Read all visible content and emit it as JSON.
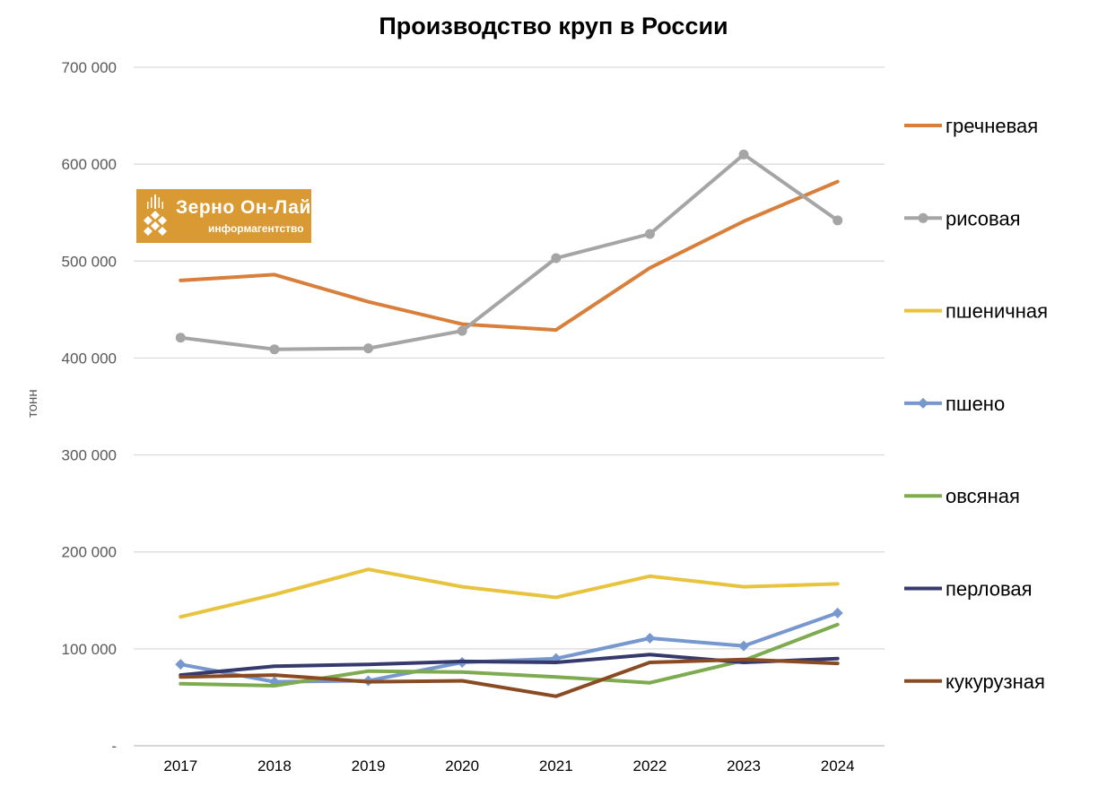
{
  "chart_data": {
    "type": "line",
    "title": "Производство круп в России",
    "ylabel": "тонн",
    "xlabel": "",
    "categories": [
      "2017",
      "2018",
      "2019",
      "2020",
      "2021",
      "2022",
      "2023",
      "2024"
    ],
    "ylim": [
      0,
      700000
    ],
    "yticks": [
      {
        "value": 0,
        "label": "-"
      },
      {
        "value": 100000,
        "label": "100 000"
      },
      {
        "value": 200000,
        "label": "200 000"
      },
      {
        "value": 300000,
        "label": "300 000"
      },
      {
        "value": 400000,
        "label": "400 000"
      },
      {
        "value": 500000,
        "label": "500 000"
      },
      {
        "value": 600000,
        "label": "600 000"
      },
      {
        "value": 700000,
        "label": "700 000"
      }
    ],
    "grid": true,
    "legend_position": "right",
    "series": [
      {
        "name": "гречневая",
        "color": "#d97f3c",
        "marker": "none",
        "values": [
          480000,
          486000,
          458000,
          435000,
          429000,
          493000,
          541000,
          582000
        ]
      },
      {
        "name": "рисовая",
        "color": "#a5a5a5",
        "marker": "circle",
        "values": [
          421000,
          409000,
          410000,
          428000,
          503000,
          528000,
          610000,
          542000
        ]
      },
      {
        "name": "пшеничная",
        "color": "#e8c33e",
        "marker": "none",
        "values": [
          133000,
          156000,
          182000,
          164000,
          153000,
          175000,
          164000,
          167000
        ]
      },
      {
        "name": "пшено",
        "color": "#7698cf",
        "marker": "diamond",
        "values": [
          84000,
          66000,
          67000,
          86000,
          90000,
          111000,
          103000,
          137000
        ]
      },
      {
        "name": "овсяная",
        "color": "#7eab4f",
        "marker": "none",
        "values": [
          64000,
          62000,
          77000,
          76000,
          71000,
          65000,
          88000,
          125000
        ]
      },
      {
        "name": "перловая",
        "color": "#35396b",
        "marker": "none",
        "values": [
          73000,
          82000,
          84000,
          87000,
          86000,
          94000,
          86000,
          90000
        ]
      },
      {
        "name": "кукурузная",
        "color": "#8a4b22",
        "marker": "none",
        "values": [
          71000,
          73000,
          66000,
          67000,
          51000,
          86000,
          89000,
          85000
        ]
      }
    ]
  },
  "logo": {
    "name": "Зерно Он-Лайн",
    "subtitle": "информагентство",
    "background": "#d99a33"
  }
}
